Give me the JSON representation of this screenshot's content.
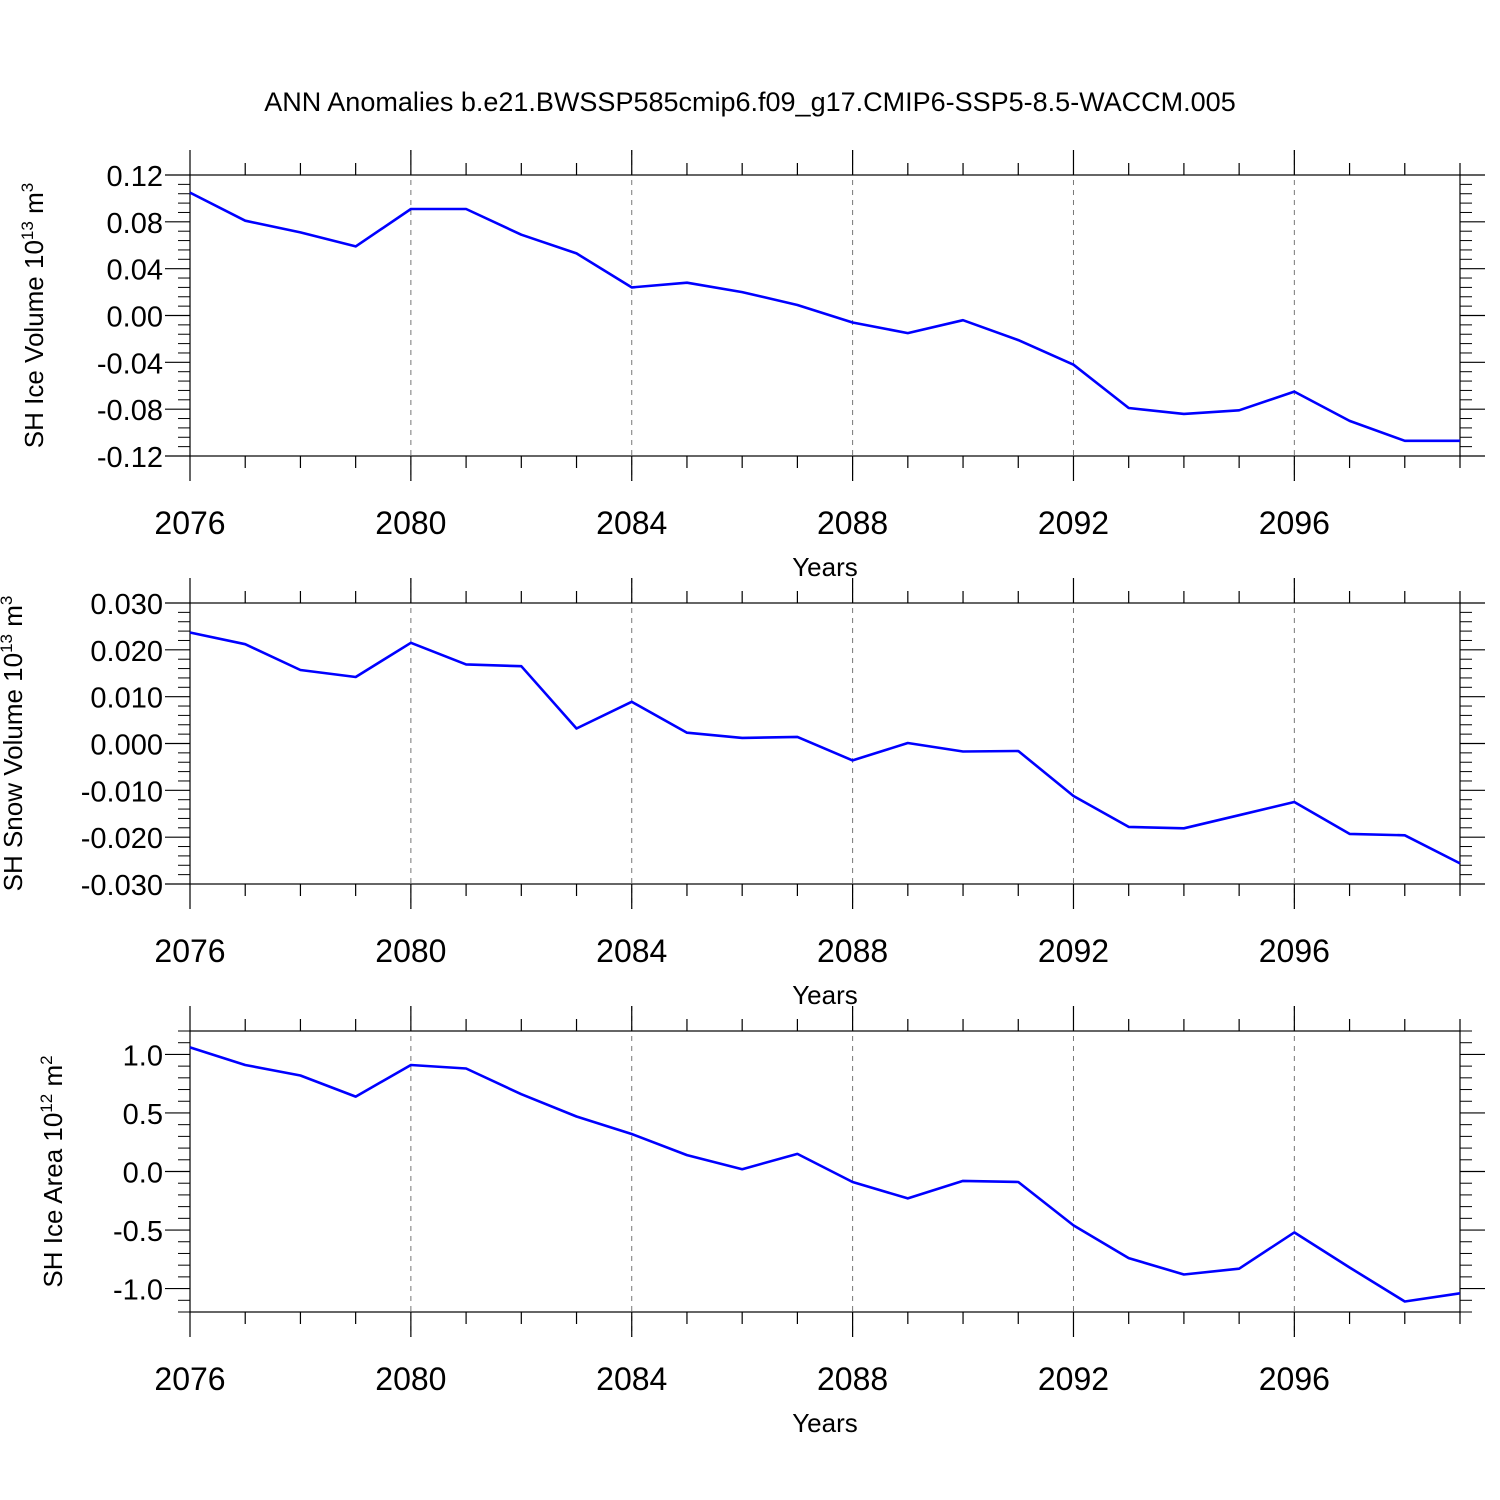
{
  "title": "ANN Anomalies b.e21.BWSSP585cmip6.f09_g17.CMIP6-SSP5-8.5-WACCM.005",
  "line_color": "#0000ff",
  "chart_data": [
    {
      "type": "line",
      "ylabel_main": "SH Ice Volume 10",
      "ylabel_exp": "13",
      "ylabel_unit": " m",
      "ylabel_unit_exp": "3",
      "xlabel": "Years",
      "xlim": [
        2076,
        2099
      ],
      "ylim": [
        -0.12,
        0.12
      ],
      "y_ticks": [
        0.12,
        0.08,
        0.04,
        0.0,
        -0.04,
        -0.08,
        -0.12
      ],
      "y_tick_labels": [
        "0.12",
        "0.08",
        "0.04",
        "0.00",
        "-0.04",
        "-0.08",
        "-0.12"
      ],
      "x_ticks": [
        2076,
        2080,
        2084,
        2088,
        2092,
        2096
      ],
      "x_tick_labels": [
        "2076",
        "2080",
        "2084",
        "2088",
        "2092",
        "2096"
      ],
      "x": [
        2076,
        2077,
        2078,
        2079,
        2080,
        2081,
        2082,
        2083,
        2084,
        2085,
        2086,
        2087,
        2088,
        2089,
        2090,
        2091,
        2092,
        2093,
        2094,
        2095,
        2096,
        2097,
        2098,
        2099
      ],
      "values": [
        0.105,
        0.081,
        0.071,
        0.059,
        0.091,
        0.091,
        0.069,
        0.053,
        0.024,
        0.028,
        0.02,
        0.009,
        -0.006,
        -0.015,
        -0.004,
        -0.021,
        -0.042,
        -0.079,
        -0.084,
        -0.081,
        -0.065,
        -0.09,
        -0.107,
        -0.107
      ]
    },
    {
      "type": "line",
      "ylabel_main": "SH Snow Volume 10",
      "ylabel_exp": "13",
      "ylabel_unit": " m",
      "ylabel_unit_exp": "3",
      "xlabel": "Years",
      "xlim": [
        2076,
        2099
      ],
      "ylim": [
        -0.03,
        0.03
      ],
      "y_ticks": [
        0.03,
        0.02,
        0.01,
        0.0,
        -0.01,
        -0.02,
        -0.03
      ],
      "y_tick_labels": [
        "0.030",
        "0.020",
        "0.010",
        "0.000",
        "-0.010",
        "-0.020",
        "-0.030"
      ],
      "x_ticks": [
        2076,
        2080,
        2084,
        2088,
        2092,
        2096
      ],
      "x_tick_labels": [
        "2076",
        "2080",
        "2084",
        "2088",
        "2092",
        "2096"
      ],
      "x": [
        2076,
        2077,
        2078,
        2079,
        2080,
        2081,
        2082,
        2083,
        2084,
        2085,
        2086,
        2087,
        2088,
        2089,
        2090,
        2091,
        2092,
        2093,
        2094,
        2095,
        2096,
        2097,
        2098,
        2099
      ],
      "values": [
        0.0237,
        0.0212,
        0.0157,
        0.0142,
        0.0215,
        0.0169,
        0.0165,
        0.0032,
        0.0089,
        0.0023,
        0.0012,
        0.0014,
        -0.0036,
        0.0001,
        -0.0017,
        -0.0016,
        -0.0112,
        -0.0178,
        -0.0181,
        -0.0153,
        -0.0125,
        -0.0193,
        -0.0196,
        -0.0256
      ]
    },
    {
      "type": "line",
      "ylabel_main": "SH Ice Area 10",
      "ylabel_exp": "12",
      "ylabel_unit": " m",
      "ylabel_unit_exp": "2",
      "xlabel": "Years",
      "xlim": [
        2076,
        2099
      ],
      "ylim": [
        -1.2,
        1.2
      ],
      "y_ticks": [
        1.0,
        0.5,
        0.0,
        -0.5,
        -1.0
      ],
      "y_tick_labels": [
        "1.0",
        "0.5",
        "0.0",
        "-0.5",
        "-1.0"
      ],
      "x_ticks": [
        2076,
        2080,
        2084,
        2088,
        2092,
        2096
      ],
      "x_tick_labels": [
        "2076",
        "2080",
        "2084",
        "2088",
        "2092",
        "2096"
      ],
      "x": [
        2076,
        2077,
        2078,
        2079,
        2080,
        2081,
        2082,
        2083,
        2084,
        2085,
        2086,
        2087,
        2088,
        2089,
        2090,
        2091,
        2092,
        2093,
        2094,
        2095,
        2096,
        2097,
        2098,
        2099
      ],
      "values": [
        1.06,
        0.91,
        0.82,
        0.64,
        0.91,
        0.88,
        0.66,
        0.47,
        0.32,
        0.14,
        0.02,
        0.15,
        -0.09,
        -0.23,
        -0.08,
        -0.09,
        -0.46,
        -0.74,
        -0.88,
        -0.83,
        -0.52,
        -0.82,
        -1.11,
        -1.04
      ]
    }
  ]
}
